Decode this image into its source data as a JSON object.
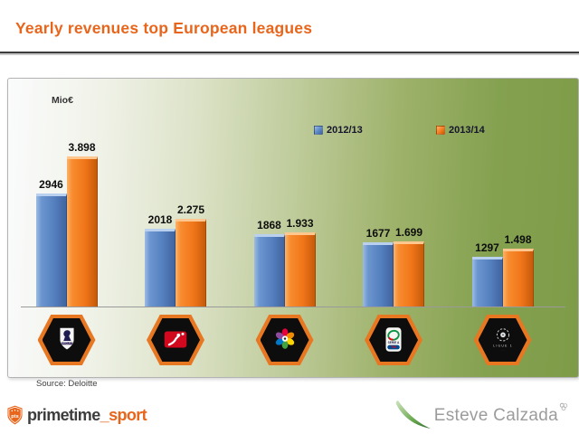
{
  "slide": {
    "title": "Yearly revenues top European leagues",
    "source": "Source: Deloitte"
  },
  "chart_data": {
    "type": "bar",
    "title": "Yearly revenues top European leagues",
    "unit_label": "Mio€",
    "categories": [
      "Premier League",
      "Bundesliga",
      "La Liga",
      "Serie A",
      "Ligue 1"
    ],
    "series": [
      {
        "name": "2012/13",
        "color": "#5b87c5",
        "values": [
          2946,
          2018,
          1868,
          1677,
          1297
        ],
        "labels": [
          "2946",
          "2018",
          "1868",
          "1677",
          "1297"
        ]
      },
      {
        "name": "2013/14",
        "color": "#f57c1f",
        "values": [
          3898,
          2275,
          1933,
          1699,
          1498
        ],
        "labels": [
          "3.898",
          "2.275",
          "1.933",
          "1.699",
          "1.498"
        ]
      }
    ],
    "legend_position": "top-right",
    "grid": false,
    "ylim": [
      0,
      4200
    ]
  },
  "footer": {
    "brand_left": {
      "shield_text": "pts",
      "name_primary": "primetime",
      "separator": "_",
      "name_secondary": "sport"
    },
    "brand_right": {
      "name": "Esteve Calzada"
    }
  },
  "colors": {
    "accent_orange": "#e8651c",
    "bar_blue": "#5b87c5",
    "bar_orange": "#f57c1f",
    "panel_green": "#7e9c48",
    "hex_border": "#e87722"
  }
}
